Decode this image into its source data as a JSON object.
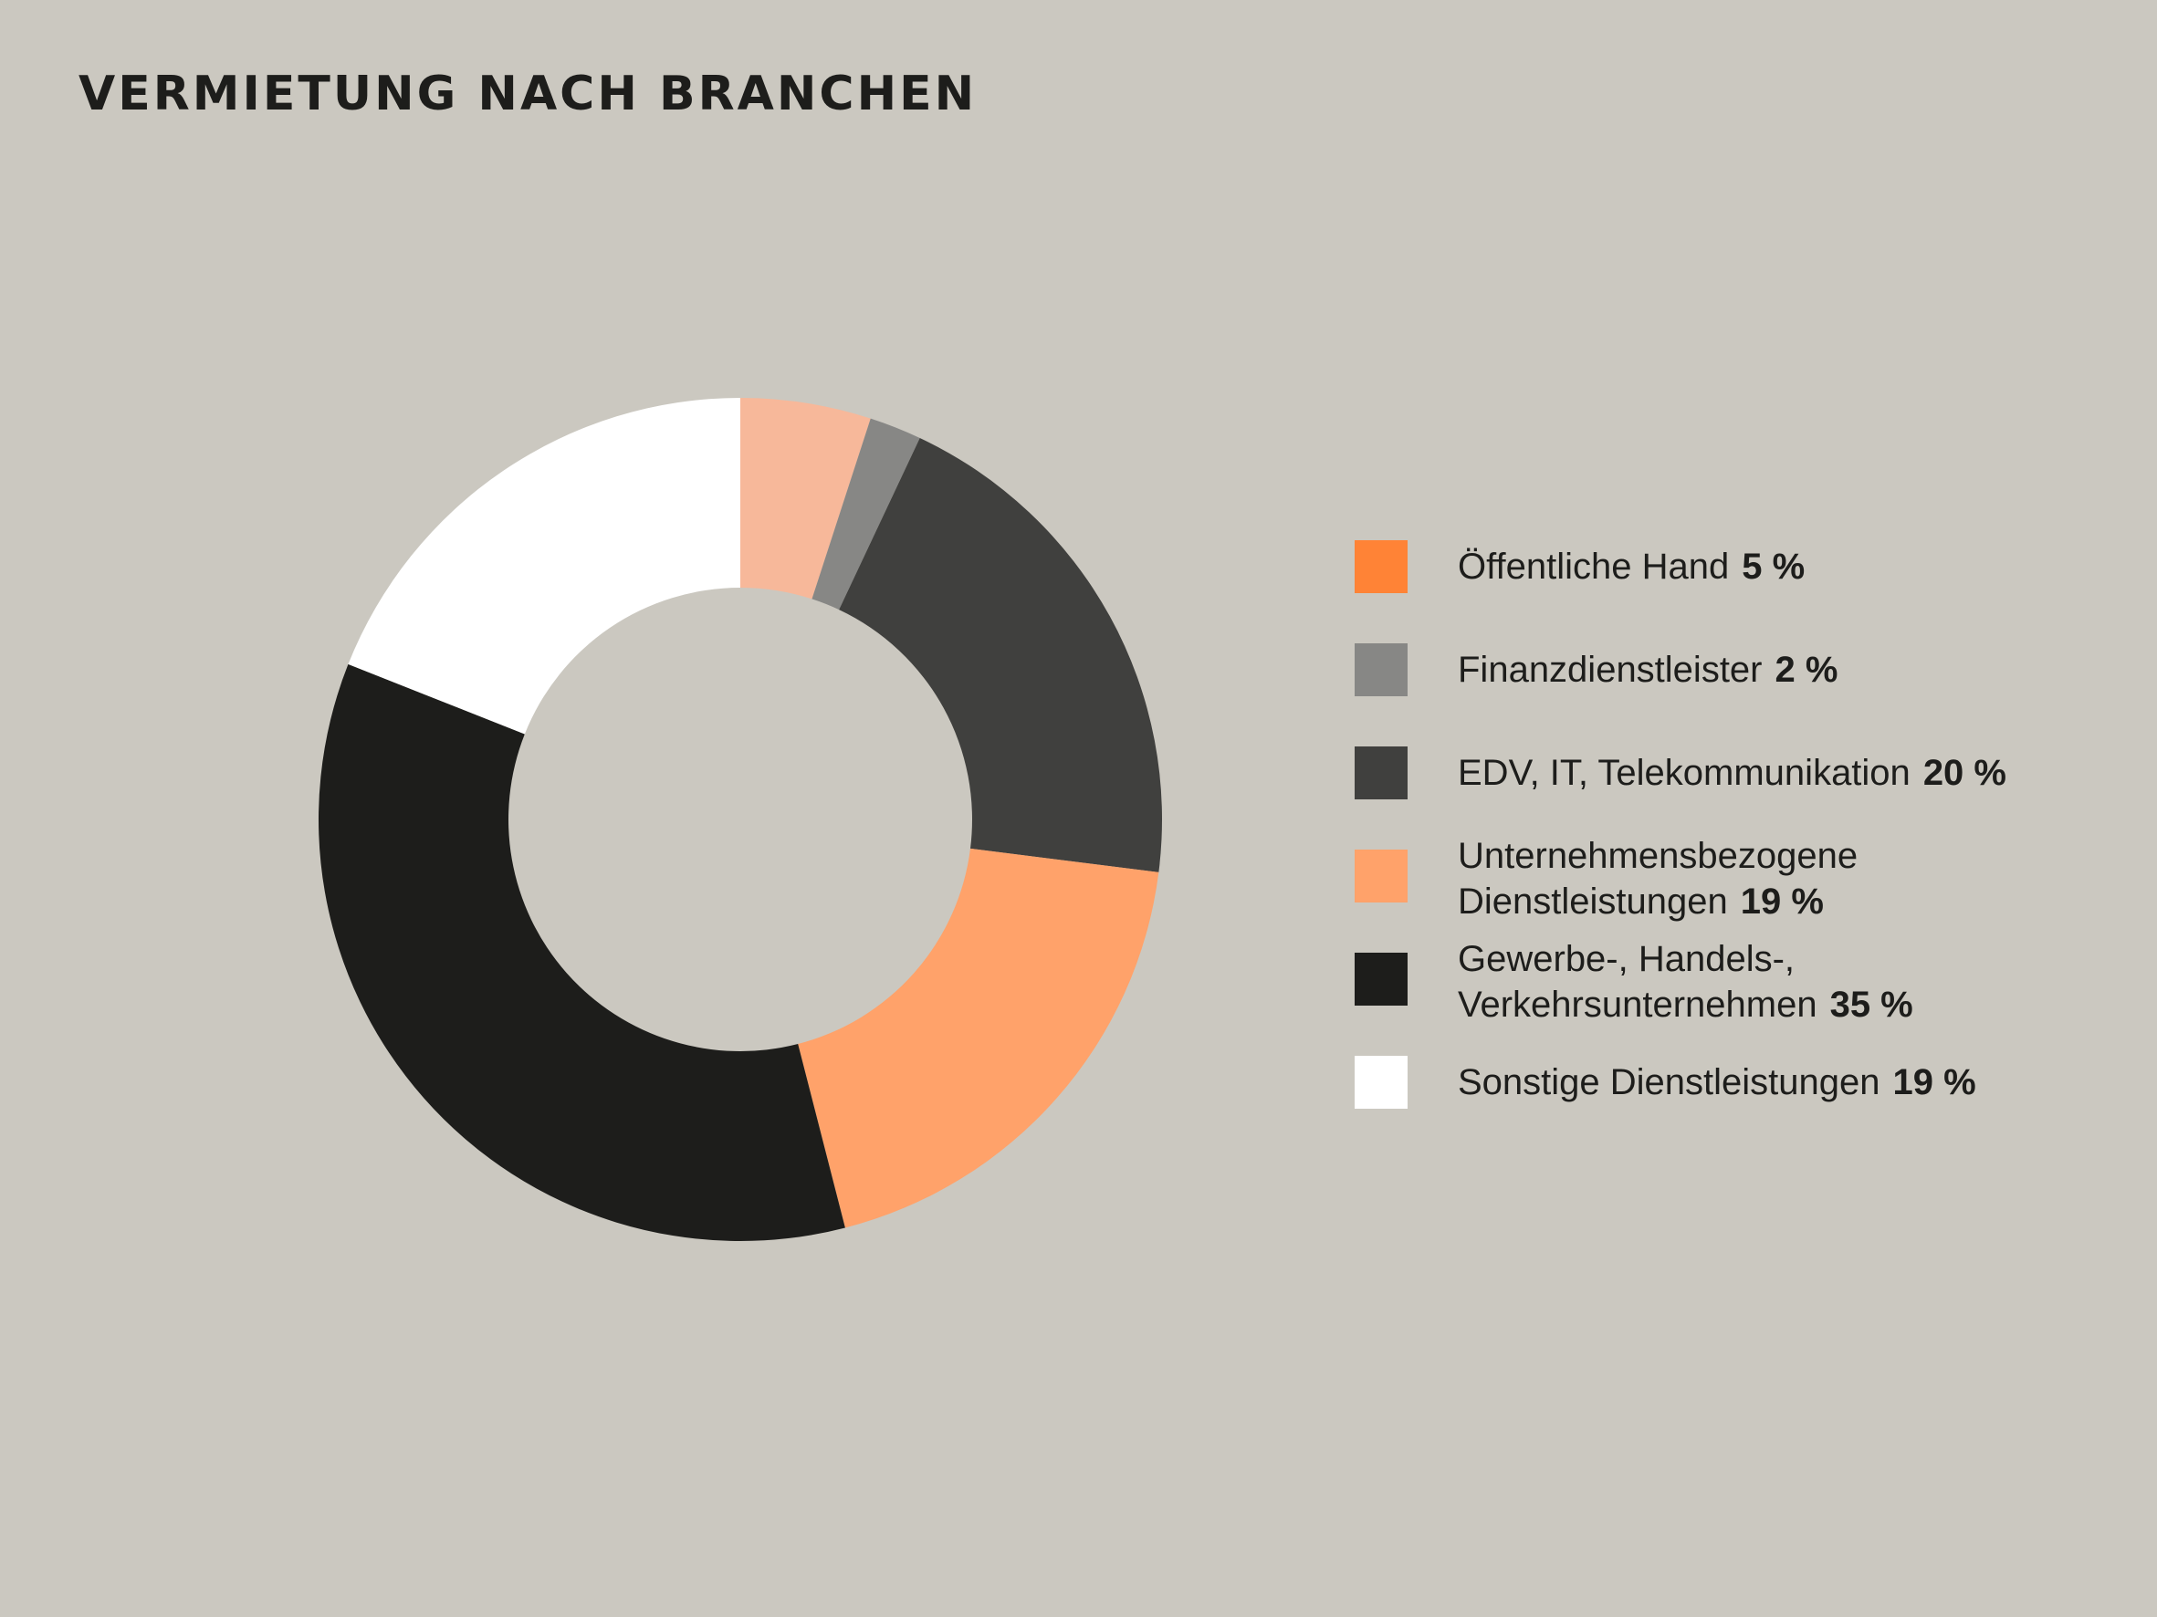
{
  "chart_data": {
    "type": "pie",
    "title": "VERMIETUNG NACH BRANCHEN",
    "slices": [
      {
        "label": "Öffentliche Hand",
        "label_lines": [
          "Öffentliche Hand"
        ],
        "value": 5,
        "value_label": "5 %",
        "color": "#f7b89a",
        "legend_color": "#ff8336"
      },
      {
        "label": "Finanzdienstleister",
        "label_lines": [
          "Finanzdienstleister"
        ],
        "value": 2,
        "value_label": "2 %",
        "color": "#878785",
        "legend_color": "#878785"
      },
      {
        "label": "EDV, IT, Telekommunikation",
        "label_lines": [
          "EDV, IT, Telekommunikation"
        ],
        "value": 20,
        "value_label": "20 %",
        "color": "#40403e",
        "legend_color": "#40403e"
      },
      {
        "label": "Unternehmensbezogene Dienstleistungen",
        "label_lines": [
          "Unternehmensbezogene",
          "Dienstleistungen"
        ],
        "value": 19,
        "value_label": "19 %",
        "color": "#ffa26a",
        "legend_color": "#ffa26a"
      },
      {
        "label": "Gewerbe-, Handels-, Verkehrsunternehmen",
        "label_lines": [
          "Gewerbe-, Handels-,",
          "Verkehrsunternehmen"
        ],
        "value": 35,
        "value_label": "35 %",
        "color": "#1d1d1b",
        "legend_color": "#1d1d1b"
      },
      {
        "label": "Sonstige Dienstleistungen",
        "label_lines": [
          "Sonstige Dienstleistungen"
        ],
        "value": 19,
        "value_label": "19 %",
        "color": "#ffffff",
        "legend_color": "#ffffff"
      }
    ],
    "legend_position": "right"
  }
}
